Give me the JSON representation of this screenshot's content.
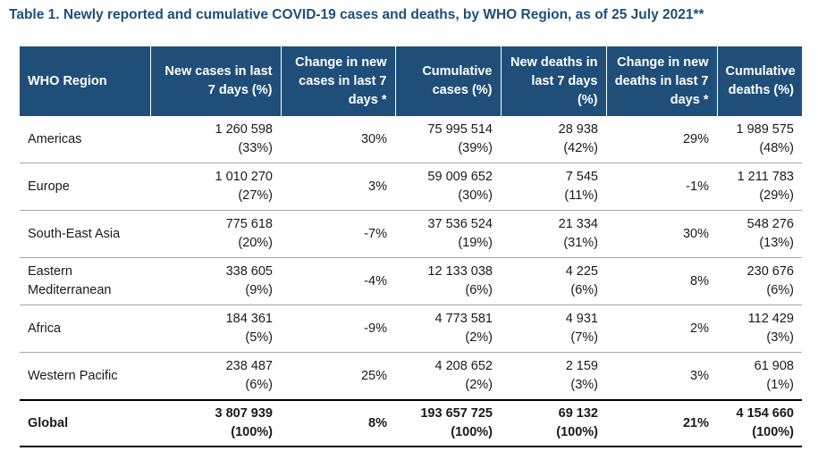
{
  "title": "Table 1. Newly reported and cumulative COVID-19 cases and deaths, by WHO Region, as of 25 July 2021**",
  "headers": {
    "region": "WHO Region",
    "new_cases": "New cases in last 7 days (%)",
    "change_cases": "Change in new cases in last 7 days *",
    "cum_cases": "Cumulative cases (%)",
    "new_deaths": "New deaths in last 7 days (%)",
    "change_deaths": "Change in new deaths in last 7 days *",
    "cum_deaths": "Cumulative deaths (%)"
  },
  "rows": [
    {
      "region": "Americas",
      "new_cases": "1 260 598",
      "new_cases_pct": "(33%)",
      "change_cases": "30%",
      "cum_cases": "75 995 514",
      "cum_cases_pct": "(39%)",
      "new_deaths": "28 938",
      "new_deaths_pct": "(42%)",
      "change_deaths": "29%",
      "cum_deaths": "1 989 575",
      "cum_deaths_pct": "(48%)"
    },
    {
      "region": "Europe",
      "new_cases": "1 010 270",
      "new_cases_pct": "(27%)",
      "change_cases": "3%",
      "cum_cases": "59 009 652",
      "cum_cases_pct": "(30%)",
      "new_deaths": "7 545",
      "new_deaths_pct": "(11%)",
      "change_deaths": "-1%",
      "cum_deaths": "1 211 783",
      "cum_deaths_pct": "(29%)"
    },
    {
      "region": "South-East Asia",
      "new_cases": "775 618",
      "new_cases_pct": "(20%)",
      "change_cases": "-7%",
      "cum_cases": "37 536 524",
      "cum_cases_pct": "(19%)",
      "new_deaths": "21 334",
      "new_deaths_pct": "(31%)",
      "change_deaths": "30%",
      "cum_deaths": "548 276",
      "cum_deaths_pct": "(13%)"
    },
    {
      "region": "Eastern Mediterranean",
      "new_cases": "338 605",
      "new_cases_pct": "(9%)",
      "change_cases": "-4%",
      "cum_cases": "12 133 038",
      "cum_cases_pct": "(6%)",
      "new_deaths": "4 225",
      "new_deaths_pct": "(6%)",
      "change_deaths": "8%",
      "cum_deaths": "230 676",
      "cum_deaths_pct": "(6%)"
    },
    {
      "region": "Africa",
      "new_cases": "184 361",
      "new_cases_pct": "(5%)",
      "change_cases": "-9%",
      "cum_cases": "4 773 581",
      "cum_cases_pct": "(2%)",
      "new_deaths": "4 931",
      "new_deaths_pct": "(7%)",
      "change_deaths": "2%",
      "cum_deaths": "112 429",
      "cum_deaths_pct": "(3%)"
    },
    {
      "region": "Western Pacific",
      "new_cases": "238 487",
      "new_cases_pct": "(6%)",
      "change_cases": "25%",
      "cum_cases": "4 208 652",
      "cum_cases_pct": "(2%)",
      "new_deaths": "2 159",
      "new_deaths_pct": "(3%)",
      "change_deaths": "3%",
      "cum_deaths": "61 908",
      "cum_deaths_pct": "(1%)"
    }
  ],
  "global": {
    "region": "Global",
    "new_cases": "3 807 939",
    "new_cases_pct": "(100%)",
    "change_cases": "8%",
    "cum_cases": "193 657 725",
    "cum_cases_pct": "(100%)",
    "new_deaths": "69 132",
    "new_deaths_pct": "(100%)",
    "change_deaths": "21%",
    "cum_deaths": "4 154 660",
    "cum_deaths_pct": "(100%)"
  },
  "colors": {
    "header_bg": "#1f4e79",
    "title": "#1f4e79"
  }
}
